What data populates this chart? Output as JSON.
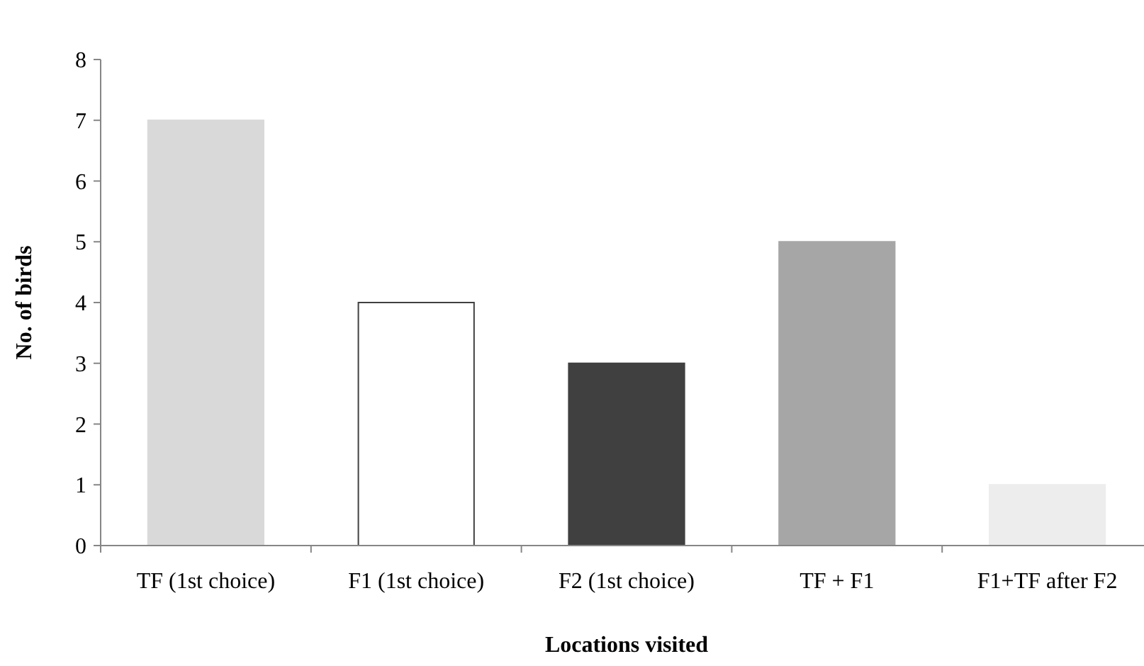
{
  "chart_data": {
    "type": "bar",
    "xlabel": "Locations visited",
    "ylabel": "No. of birds",
    "categories": [
      "TF (1st choice)",
      "F1 (1st choice)",
      "F2 (1st choice)",
      "TF + F1",
      "F1+TF after F2"
    ],
    "values": [
      7,
      4,
      3,
      5,
      1
    ],
    "colors": [
      "#d9d9d9",
      "#ffffff",
      "#404040",
      "#a6a6a6",
      "#ededed"
    ],
    "ylim": [
      0,
      8
    ],
    "yticks": [
      0,
      1,
      2,
      3,
      4,
      5,
      6,
      7,
      8
    ],
    "grid": false
  }
}
